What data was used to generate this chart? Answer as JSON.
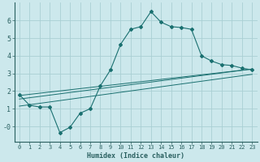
{
  "xlabel": "Humidex (Indice chaleur)",
  "background_color": "#cce8ec",
  "grid_color": "#aacfd4",
  "line_color": "#1a7070",
  "axis_color": "#2a6060",
  "xlim": [
    -0.5,
    23.5
  ],
  "ylim": [
    -0.85,
    7.0
  ],
  "yticks": [
    0,
    1,
    2,
    3,
    4,
    5,
    6
  ],
  "ytick_labels": [
    "-0",
    "1",
    "2",
    "3",
    "4",
    "5",
    "6"
  ],
  "xticks": [
    0,
    1,
    2,
    3,
    4,
    5,
    6,
    7,
    8,
    9,
    10,
    11,
    12,
    13,
    14,
    15,
    16,
    17,
    18,
    19,
    20,
    21,
    22,
    23
  ],
  "series1_x": [
    0,
    1,
    2,
    3,
    4,
    5,
    6,
    7,
    8,
    9,
    10,
    11,
    12,
    13,
    14,
    15,
    16,
    17,
    18,
    19,
    20,
    21,
    22,
    23
  ],
  "series1_y": [
    1.8,
    1.2,
    1.1,
    1.1,
    -0.35,
    -0.05,
    0.75,
    1.0,
    2.3,
    3.2,
    4.65,
    5.5,
    5.65,
    6.5,
    5.9,
    5.65,
    5.6,
    5.5,
    4.0,
    3.7,
    3.5,
    3.45,
    3.3,
    3.2
  ],
  "series2_x": [
    0,
    23
  ],
  "series2_y": [
    1.55,
    3.25
  ],
  "series3_x": [
    0,
    23
  ],
  "series3_y": [
    1.75,
    3.25
  ],
  "series4_x": [
    0,
    23
  ],
  "series4_y": [
    1.15,
    2.95
  ]
}
